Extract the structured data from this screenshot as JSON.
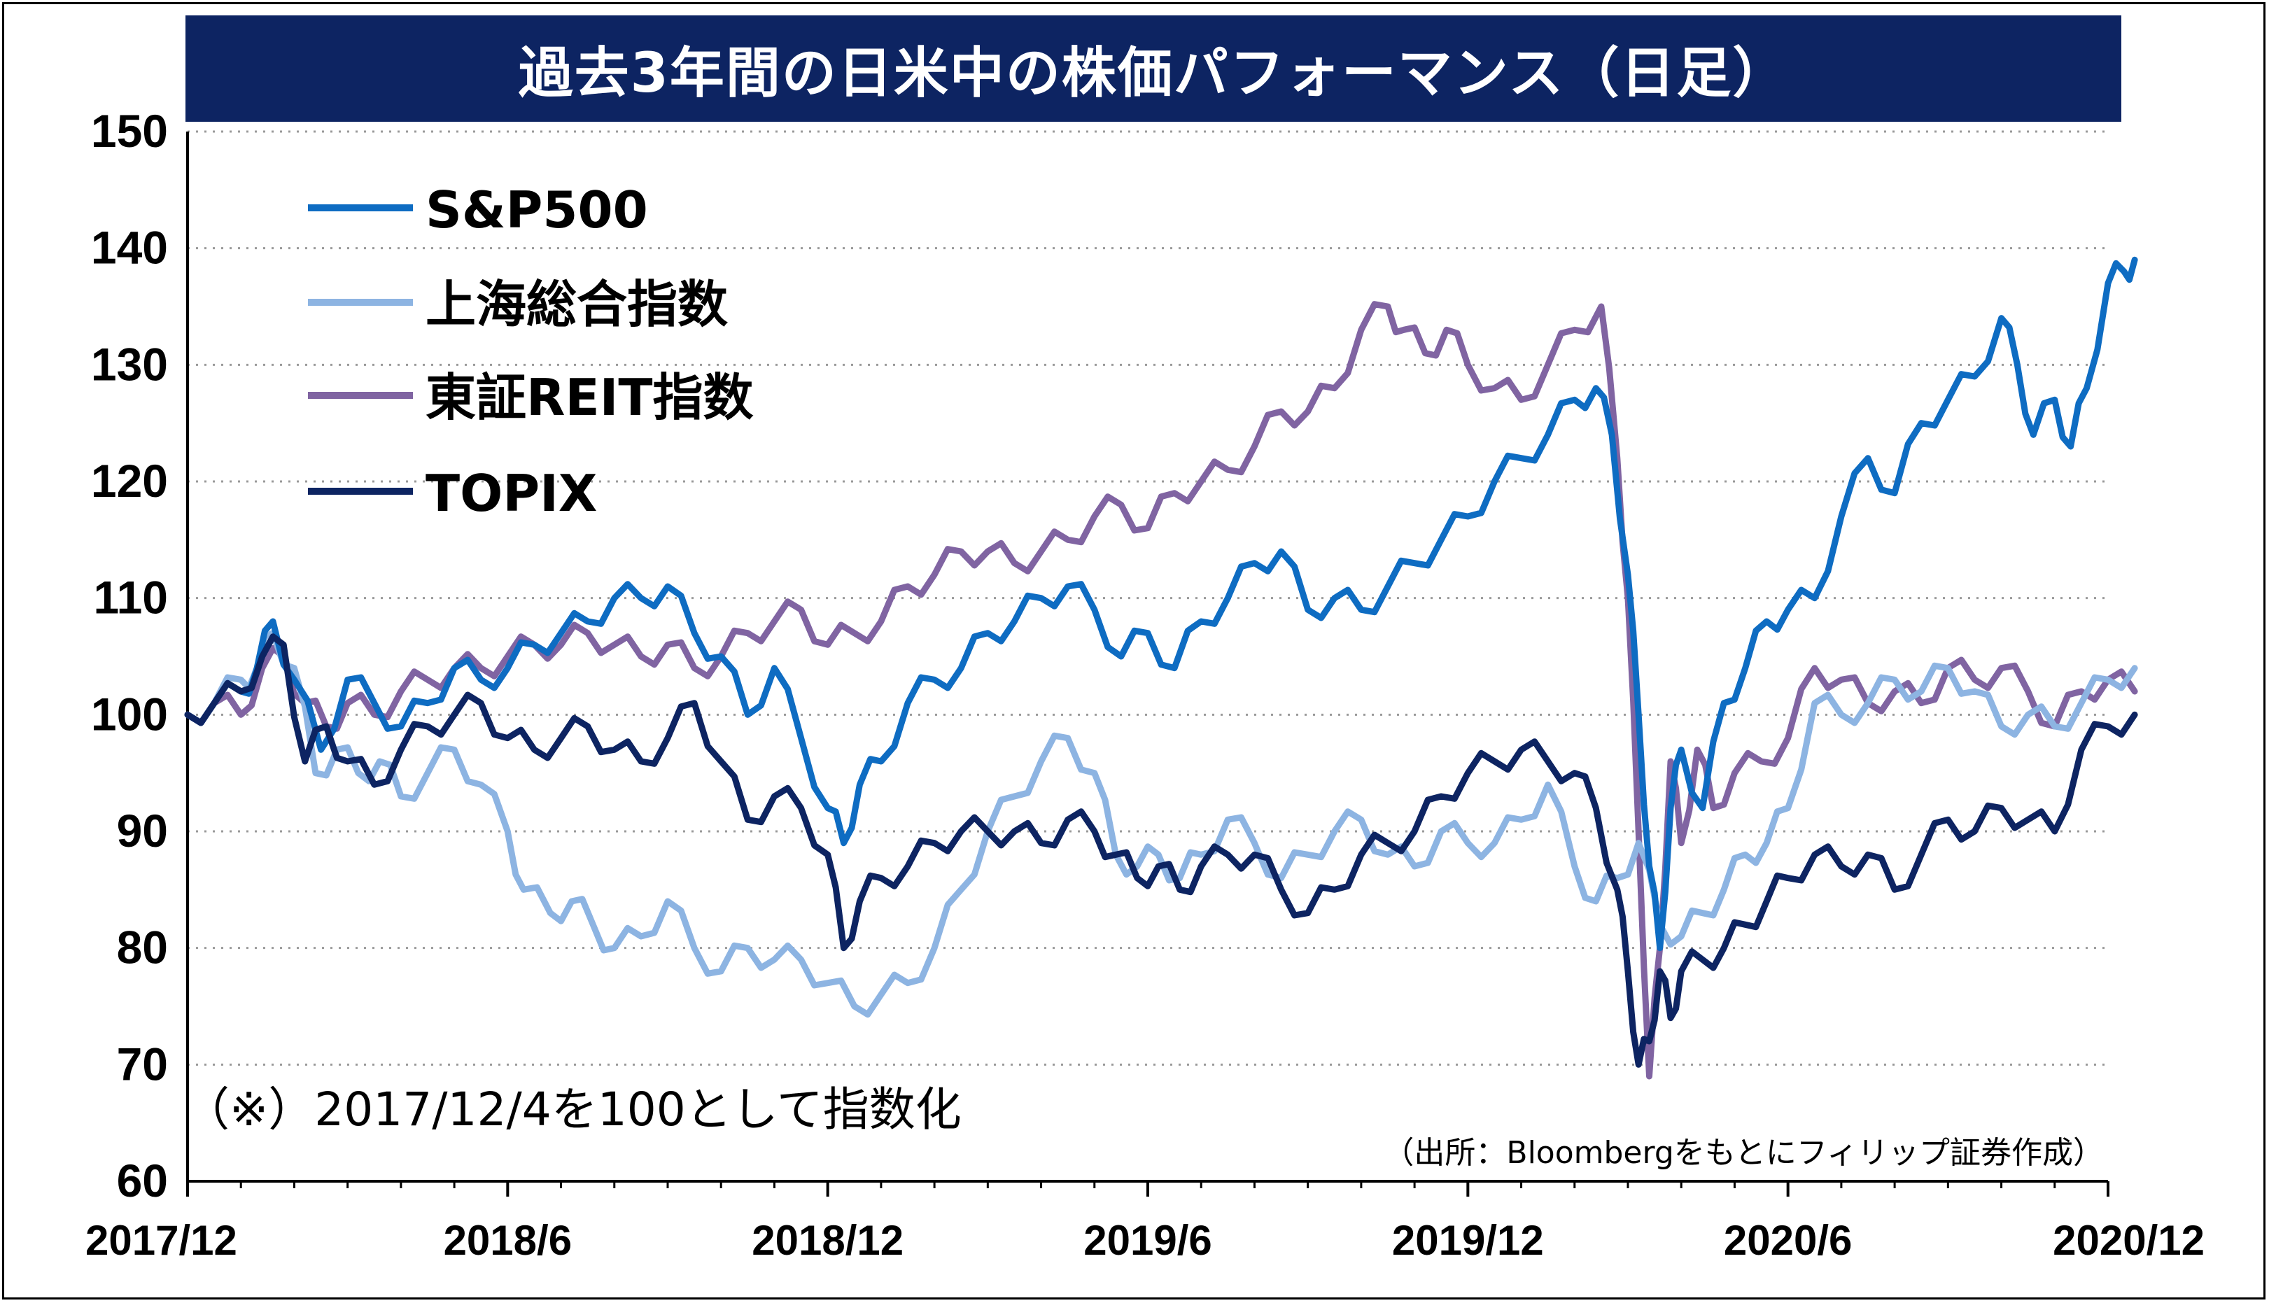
{
  "chart_data": {
    "type": "line",
    "title": "過去3年間の日米中の株価パフォーマンス（日足）",
    "note": "（※）2017/12/4を100として指数化",
    "source": "（出所：Bloombergをもとにフィリップ証券作成）",
    "xlabel": "",
    "ylabel": "",
    "ylim": [
      60,
      150
    ],
    "yticks": [
      60,
      70,
      80,
      90,
      100,
      110,
      120,
      130,
      140,
      150
    ],
    "xticks": [
      "2017/12",
      "2018/6",
      "2018/12",
      "2019/6",
      "2019/12",
      "2020/6",
      "2020/12"
    ],
    "x_tick_months": [
      0,
      6,
      12,
      18,
      24,
      30,
      36
    ],
    "grid": "horizontal-dotted",
    "legend_position": "top-left",
    "series": [
      {
        "name": "S&P500",
        "color": "#0e6cc2",
        "points": [
          [
            0,
            100
          ],
          [
            0.5,
            101
          ],
          [
            1,
            102
          ],
          [
            1.3,
            104
          ],
          [
            1.6,
            108
          ],
          [
            2,
            103
          ],
          [
            2.5,
            97
          ],
          [
            3,
            103
          ],
          [
            3.5,
            101
          ],
          [
            4,
            99
          ],
          [
            4.5,
            101
          ],
          [
            5,
            104
          ],
          [
            5.5,
            103
          ],
          [
            6,
            104
          ],
          [
            6.5,
            106
          ],
          [
            7,
            107
          ],
          [
            7.5,
            108
          ],
          [
            8,
            110
          ],
          [
            8.5,
            110
          ],
          [
            9,
            111
          ],
          [
            9.5,
            107
          ],
          [
            10,
            105
          ],
          [
            10.5,
            100
          ],
          [
            11,
            104
          ],
          [
            11.5,
            98
          ],
          [
            12,
            92
          ],
          [
            12.3,
            89
          ],
          [
            12.6,
            94
          ],
          [
            13,
            96
          ],
          [
            13.5,
            101
          ],
          [
            14,
            103
          ],
          [
            14.5,
            104
          ],
          [
            15,
            107
          ],
          [
            15.5,
            108
          ],
          [
            16,
            110
          ],
          [
            16.5,
            111
          ],
          [
            17,
            109
          ],
          [
            17.5,
            105
          ],
          [
            18,
            107
          ],
          [
            18.5,
            104
          ],
          [
            19,
            108
          ],
          [
            19.5,
            110
          ],
          [
            20,
            113
          ],
          [
            20.5,
            114
          ],
          [
            21,
            109
          ],
          [
            21.5,
            110
          ],
          [
            22,
            109
          ],
          [
            22.5,
            111
          ],
          [
            23,
            113
          ],
          [
            23.5,
            115
          ],
          [
            24,
            117
          ],
          [
            24.5,
            120
          ],
          [
            25,
            122
          ],
          [
            25.5,
            124
          ],
          [
            26,
            127
          ],
          [
            26.4,
            128
          ],
          [
            26.7,
            124
          ],
          [
            27.0,
            112
          ],
          [
            27.2,
            100
          ],
          [
            27.4,
            87
          ],
          [
            27.6,
            80
          ],
          [
            27.8,
            92
          ],
          [
            28.0,
            97
          ],
          [
            28.4,
            92
          ],
          [
            28.8,
            101
          ],
          [
            29.2,
            104
          ],
          [
            29.6,
            108
          ],
          [
            30,
            109
          ],
          [
            30.5,
            110
          ],
          [
            31,
            117
          ],
          [
            31.5,
            122
          ],
          [
            32,
            119
          ],
          [
            32.5,
            125
          ],
          [
            33,
            127
          ],
          [
            33.5,
            129
          ],
          [
            34,
            134
          ],
          [
            34.3,
            130
          ],
          [
            34.6,
            124
          ],
          [
            35,
            127
          ],
          [
            35.3,
            123
          ],
          [
            35.6,
            128
          ],
          [
            36,
            137
          ],
          [
            36.3,
            138
          ],
          [
            36.5,
            139
          ]
        ]
      },
      {
        "name": "上海総合指数",
        "color": "#8db4e2",
        "points": [
          [
            0,
            100
          ],
          [
            0.5,
            101
          ],
          [
            1,
            103
          ],
          [
            1.3,
            104
          ],
          [
            1.6,
            107
          ],
          [
            2,
            104
          ],
          [
            2.4,
            95
          ],
          [
            2.8,
            97
          ],
          [
            3.2,
            95
          ],
          [
            3.6,
            96
          ],
          [
            4,
            93
          ],
          [
            4.5,
            95
          ],
          [
            5,
            97
          ],
          [
            5.5,
            94
          ],
          [
            6,
            90
          ],
          [
            6.3,
            85
          ],
          [
            6.8,
            83
          ],
          [
            7.2,
            84
          ],
          [
            7.6,
            82
          ],
          [
            8,
            80
          ],
          [
            8.5,
            81
          ],
          [
            9,
            84
          ],
          [
            9.5,
            80
          ],
          [
            10,
            78
          ],
          [
            10.5,
            80
          ],
          [
            11,
            79
          ],
          [
            11.5,
            79
          ],
          [
            12,
            77
          ],
          [
            12.5,
            75
          ],
          [
            13,
            76
          ],
          [
            13.5,
            77
          ],
          [
            14,
            80
          ],
          [
            14.5,
            85
          ],
          [
            15,
            90
          ],
          [
            15.5,
            93
          ],
          [
            16,
            96
          ],
          [
            16.5,
            98
          ],
          [
            17,
            95
          ],
          [
            17.4,
            88
          ],
          [
            17.8,
            87
          ],
          [
            18.2,
            88
          ],
          [
            18.6,
            86
          ],
          [
            19,
            88
          ],
          [
            19.5,
            91
          ],
          [
            20,
            89
          ],
          [
            20.5,
            86
          ],
          [
            21,
            88
          ],
          [
            21.5,
            90
          ],
          [
            22,
            91
          ],
          [
            22.5,
            88
          ],
          [
            23,
            87
          ],
          [
            23.5,
            90
          ],
          [
            24,
            89
          ],
          [
            24.5,
            89
          ],
          [
            25,
            91
          ],
          [
            25.5,
            94
          ],
          [
            26,
            87
          ],
          [
            26.4,
            84
          ],
          [
            26.8,
            86
          ],
          [
            27.2,
            89
          ],
          [
            27.6,
            82
          ],
          [
            28.0,
            81
          ],
          [
            28.4,
            83
          ],
          [
            28.8,
            85
          ],
          [
            29.2,
            88
          ],
          [
            29.6,
            89
          ],
          [
            30,
            92
          ],
          [
            30.5,
            101
          ],
          [
            31,
            100
          ],
          [
            31.5,
            101
          ],
          [
            32,
            103
          ],
          [
            32.5,
            102
          ],
          [
            33,
            104
          ],
          [
            33.5,
            102
          ],
          [
            34,
            99
          ],
          [
            34.5,
            100
          ],
          [
            35,
            99
          ],
          [
            35.5,
            101
          ],
          [
            36,
            103
          ],
          [
            36.5,
            104
          ]
        ]
      },
      {
        "name": "東証REIT指数",
        "color": "#8064a2",
        "points": [
          [
            0,
            100
          ],
          [
            0.5,
            101
          ],
          [
            1,
            100
          ],
          [
            1.4,
            104
          ],
          [
            1.8,
            105
          ],
          [
            2.2,
            101
          ],
          [
            2.6,
            99
          ],
          [
            3,
            101
          ],
          [
            3.5,
            100
          ],
          [
            4,
            102
          ],
          [
            4.5,
            103
          ],
          [
            5,
            104
          ],
          [
            5.5,
            104
          ],
          [
            6,
            105
          ],
          [
            6.5,
            106
          ],
          [
            7,
            106
          ],
          [
            7.5,
            107
          ],
          [
            8,
            106
          ],
          [
            8.5,
            105
          ],
          [
            9,
            106
          ],
          [
            9.5,
            104
          ],
          [
            10,
            105
          ],
          [
            10.5,
            107
          ],
          [
            11,
            108
          ],
          [
            11.5,
            109
          ],
          [
            12,
            106
          ],
          [
            12.5,
            107
          ],
          [
            13,
            108
          ],
          [
            13.5,
            111
          ],
          [
            14,
            112
          ],
          [
            14.5,
            114
          ],
          [
            15,
            114
          ],
          [
            15.5,
            113
          ],
          [
            16,
            114
          ],
          [
            16.5,
            115
          ],
          [
            17,
            117
          ],
          [
            17.5,
            118
          ],
          [
            18,
            116
          ],
          [
            18.5,
            119
          ],
          [
            19,
            120
          ],
          [
            19.5,
            121
          ],
          [
            20,
            123
          ],
          [
            20.5,
            126
          ],
          [
            21,
            126
          ],
          [
            21.5,
            128
          ],
          [
            22,
            133
          ],
          [
            22.5,
            135
          ],
          [
            22.8,
            133
          ],
          [
            23.2,
            131
          ],
          [
            23.6,
            133
          ],
          [
            24,
            130
          ],
          [
            24.5,
            128
          ],
          [
            25,
            127
          ],
          [
            25.5,
            130
          ],
          [
            26,
            133
          ],
          [
            26.5,
            135
          ],
          [
            26.8,
            122
          ],
          [
            27.0,
            110
          ],
          [
            27.2,
            90
          ],
          [
            27.4,
            69
          ],
          [
            27.6,
            80
          ],
          [
            27.8,
            96
          ],
          [
            28.0,
            89
          ],
          [
            28.3,
            97
          ],
          [
            28.6,
            92
          ],
          [
            29,
            95
          ],
          [
            29.5,
            96
          ],
          [
            30,
            98
          ],
          [
            30.5,
            104
          ],
          [
            31,
            103
          ],
          [
            31.5,
            101
          ],
          [
            32,
            102
          ],
          [
            32.5,
            101
          ],
          [
            33,
            104
          ],
          [
            33.5,
            103
          ],
          [
            34,
            104
          ],
          [
            34.5,
            102
          ],
          [
            35,
            99
          ],
          [
            35.5,
            102
          ],
          [
            36,
            103
          ],
          [
            36.5,
            102
          ]
        ]
      },
      {
        "name": "TOPIX",
        "color": "#0d2462",
        "points": [
          [
            0,
            100
          ],
          [
            0.5,
            101
          ],
          [
            1,
            102
          ],
          [
            1.4,
            105
          ],
          [
            1.8,
            106
          ],
          [
            2.2,
            96
          ],
          [
            2.6,
            99
          ],
          [
            3,
            96
          ],
          [
            3.5,
            94
          ],
          [
            4,
            97
          ],
          [
            4.5,
            99
          ],
          [
            5,
            100
          ],
          [
            5.5,
            101
          ],
          [
            6,
            98
          ],
          [
            6.5,
            97
          ],
          [
            7,
            98
          ],
          [
            7.5,
            99
          ],
          [
            8,
            97
          ],
          [
            8.5,
            96
          ],
          [
            9,
            98
          ],
          [
            9.5,
            101
          ],
          [
            10,
            96
          ],
          [
            10.5,
            91
          ],
          [
            11,
            93
          ],
          [
            11.5,
            92
          ],
          [
            12,
            88
          ],
          [
            12.3,
            80
          ],
          [
            12.6,
            84
          ],
          [
            13,
            86
          ],
          [
            13.5,
            87
          ],
          [
            14,
            89
          ],
          [
            14.5,
            90
          ],
          [
            15,
            90
          ],
          [
            15.5,
            90
          ],
          [
            16,
            89
          ],
          [
            16.5,
            91
          ],
          [
            17,
            90
          ],
          [
            17.4,
            88
          ],
          [
            17.8,
            86
          ],
          [
            18.2,
            87
          ],
          [
            18.6,
            85
          ],
          [
            19,
            87
          ],
          [
            19.5,
            88
          ],
          [
            20,
            88
          ],
          [
            20.5,
            85
          ],
          [
            21,
            83
          ],
          [
            21.5,
            85
          ],
          [
            22,
            88
          ],
          [
            22.5,
            89
          ],
          [
            23,
            90
          ],
          [
            23.5,
            93
          ],
          [
            24,
            95
          ],
          [
            24.5,
            96
          ],
          [
            25,
            97
          ],
          [
            25.5,
            96
          ],
          [
            26,
            95
          ],
          [
            26.4,
            92
          ],
          [
            26.8,
            85
          ],
          [
            27.0,
            78
          ],
          [
            27.2,
            70
          ],
          [
            27.4,
            72
          ],
          [
            27.6,
            78
          ],
          [
            27.8,
            74
          ],
          [
            28.0,
            78
          ],
          [
            28.4,
            79
          ],
          [
            28.8,
            80
          ],
          [
            29.2,
            82
          ],
          [
            29.6,
            84
          ],
          [
            30,
            86
          ],
          [
            30.5,
            88
          ],
          [
            31,
            87
          ],
          [
            31.5,
            88
          ],
          [
            32,
            85
          ],
          [
            32.5,
            88
          ],
          [
            33,
            91
          ],
          [
            33.5,
            90
          ],
          [
            34,
            92
          ],
          [
            34.5,
            91
          ],
          [
            35,
            90
          ],
          [
            35.5,
            97
          ],
          [
            36,
            99
          ],
          [
            36.5,
            100
          ]
        ]
      }
    ]
  }
}
